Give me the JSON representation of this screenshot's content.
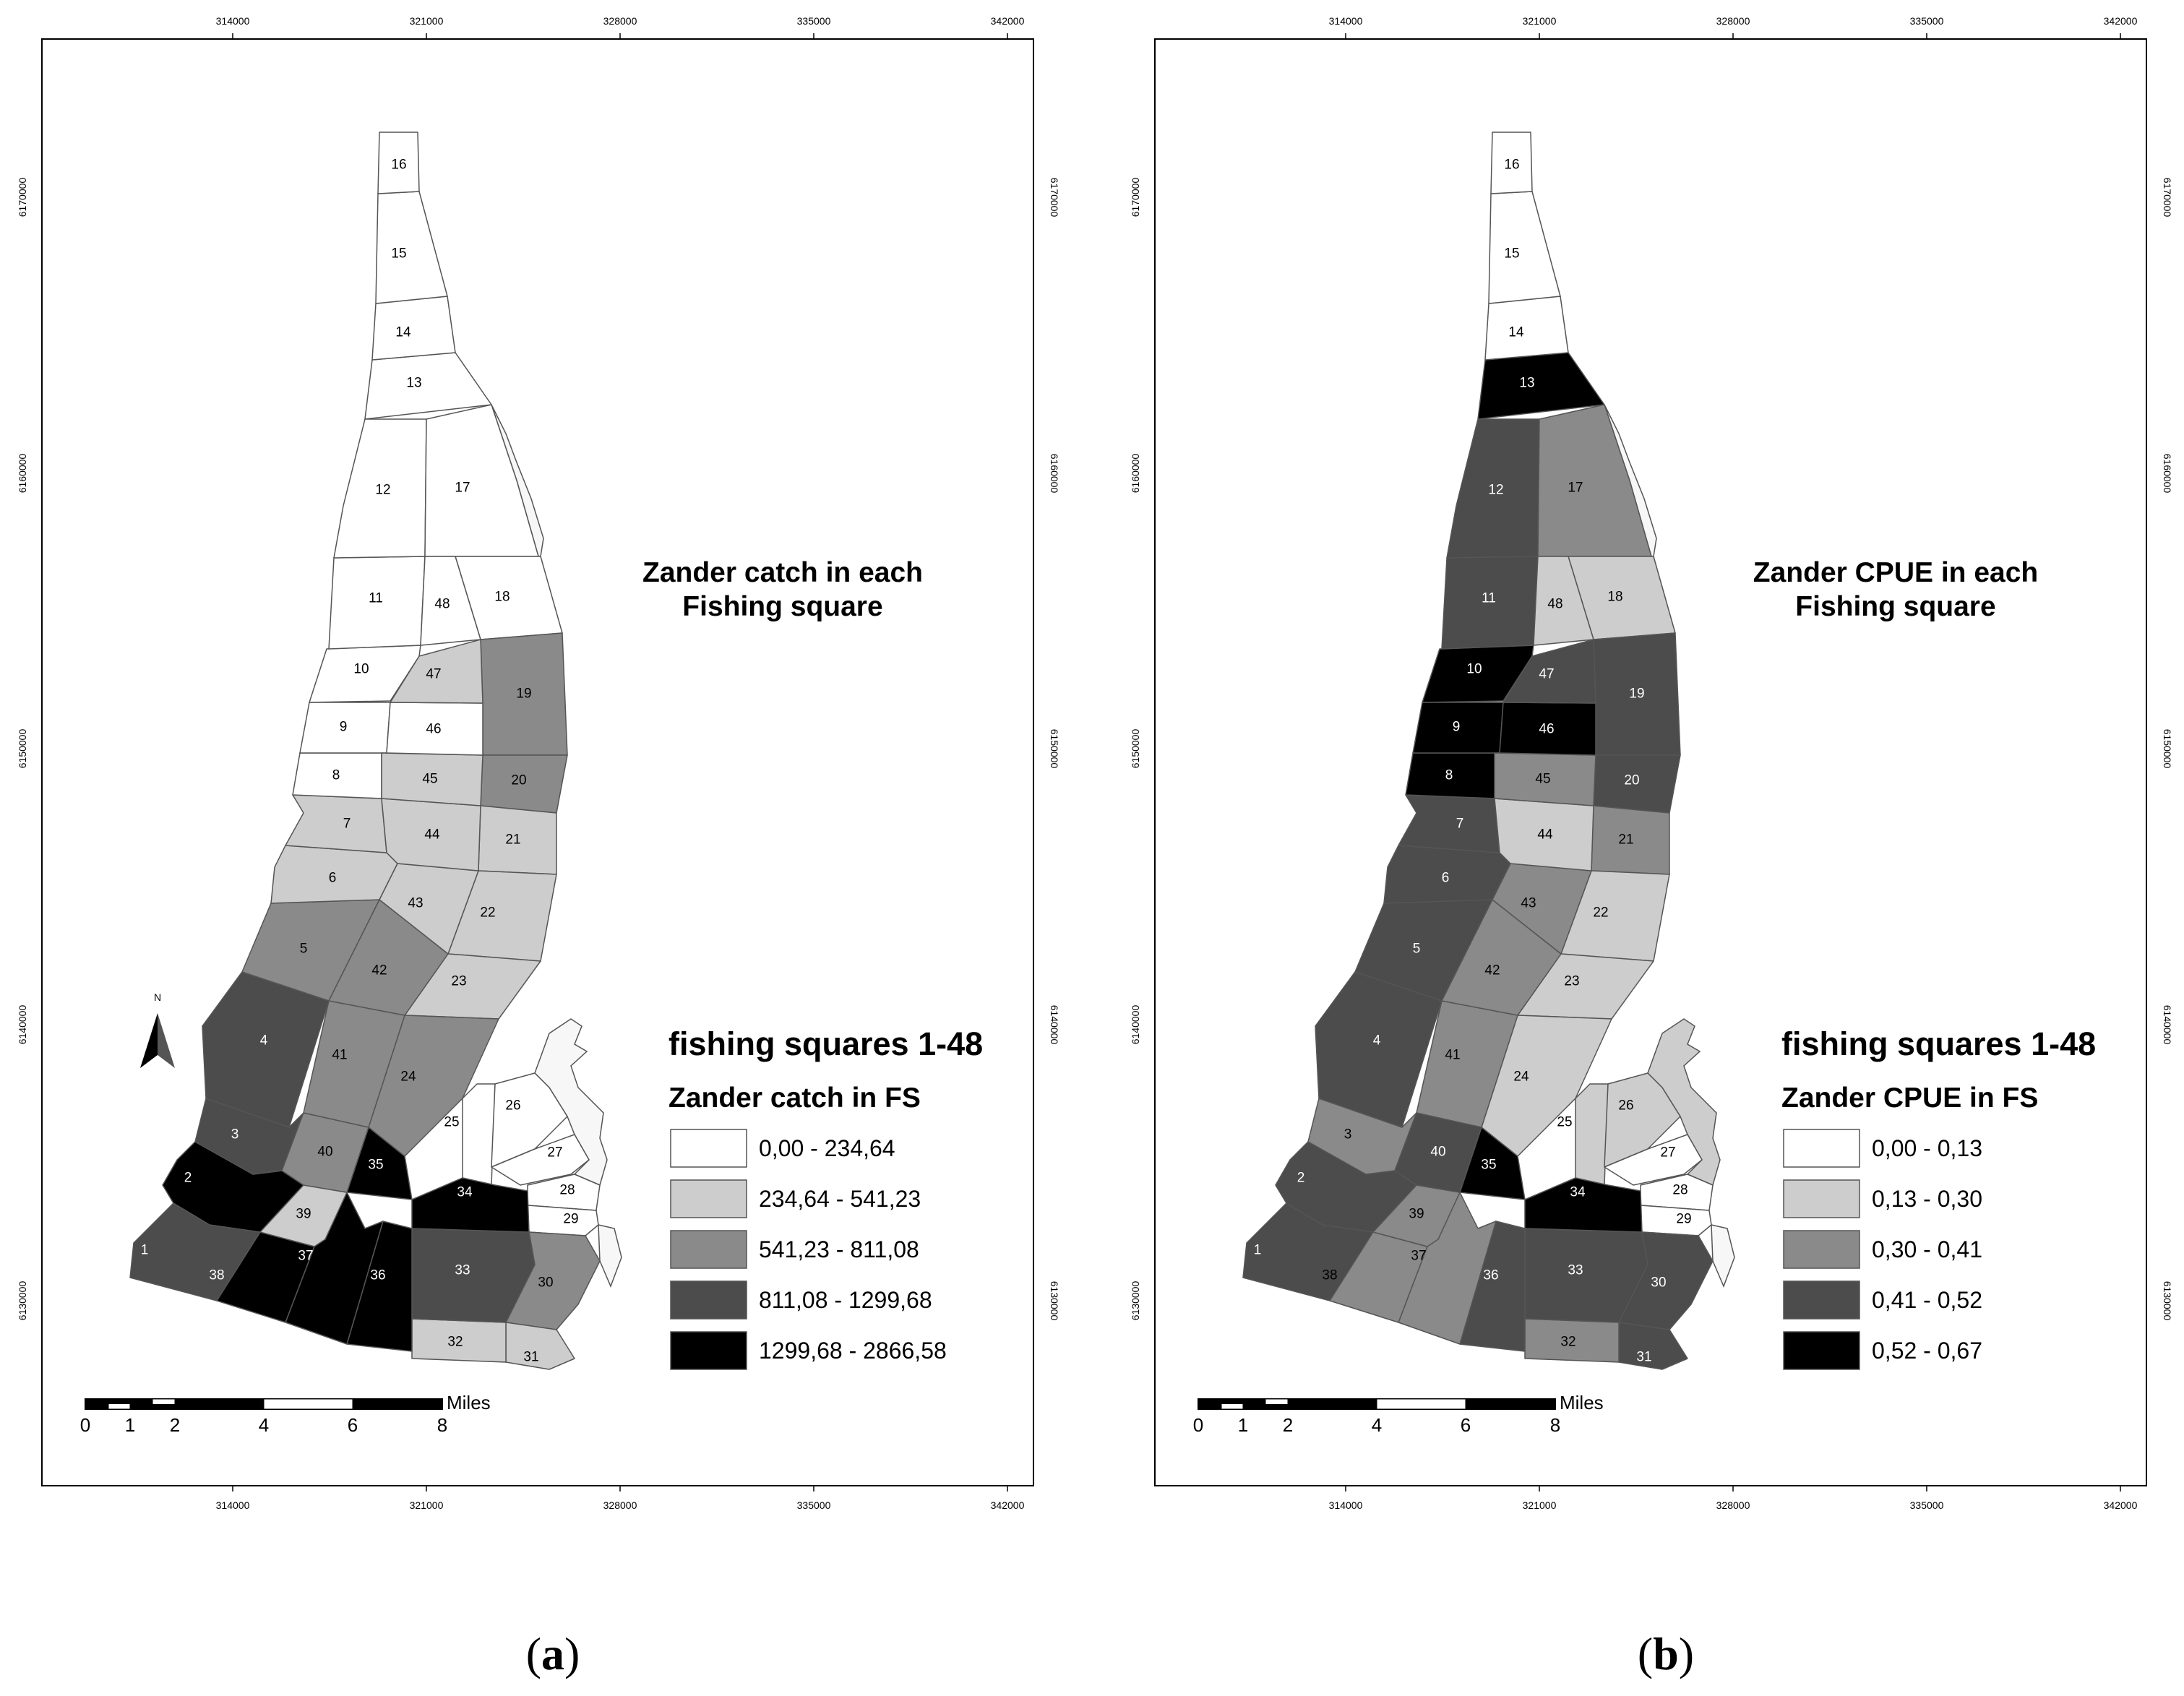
{
  "colors": {
    "class_1": "#ffffff",
    "class_2": "#cdcdcd",
    "class_3": "#8a8a8a",
    "class_4": "#4c4c4c",
    "class_5": "#000000",
    "outline": "#555555",
    "frame": "#000000"
  },
  "icons": {
    "north_arrow": "north-arrow-icon"
  },
  "panels": [
    {
      "id": "a",
      "caption_open": "(",
      "caption_letter": "a",
      "caption_close": ")",
      "map_title_line1": "Zander catch in each",
      "map_title_line2": "Fishing square",
      "legend_title": "fishing squares 1-48",
      "legend_subtitle": "Zander  catch in FS",
      "legend_classes": [
        {
          "label": "0,00 - 234,64",
          "class": 1
        },
        {
          "label": "234,64 - 541,23",
          "class": 2
        },
        {
          "label": "541,23 - 811,08",
          "class": 3
        },
        {
          "label": "811,08 - 1299,68",
          "class": 4
        },
        {
          "label": "1299,68 - 2866,58",
          "class": 5
        }
      ],
      "north_label": "N",
      "x_ticks": [
        "314000",
        "321000",
        "328000",
        "335000",
        "342000"
      ],
      "y_ticks": [
        "6170000",
        "6160000",
        "6150000",
        "6140000",
        "6130000"
      ],
      "scale_bar": {
        "labels": [
          "0",
          "1",
          "2",
          "4",
          "6",
          "8"
        ],
        "unit": "Miles"
      },
      "squares": {
        "1": 4,
        "2": 5,
        "3": 4,
        "4": 4,
        "5": 3,
        "6": 2,
        "7": 2,
        "8": 1,
        "9": 1,
        "10": 1,
        "11": 1,
        "12": 1,
        "13": 1,
        "14": 1,
        "15": 1,
        "16": 1,
        "17": 1,
        "18": 1,
        "19": 3,
        "20": 3,
        "21": 2,
        "22": 2,
        "23": 2,
        "24": 3,
        "25": 1,
        "26": 1,
        "27": 1,
        "28": 1,
        "29": 1,
        "30": 3,
        "31": 2,
        "32": 2,
        "33": 4,
        "34": 5,
        "35": 5,
        "36": 5,
        "37": 5,
        "38": 5,
        "39": 2,
        "40": 3,
        "41": 3,
        "42": 3,
        "43": 2,
        "44": 2,
        "45": 2,
        "46": 1,
        "47": 2,
        "48": 1
      }
    },
    {
      "id": "b",
      "caption_open": "(",
      "caption_letter": "b",
      "caption_close": ")",
      "map_title_line1": "Zander CPUE in each",
      "map_title_line2": "Fishing square",
      "legend_title": "fishing squares 1-48",
      "legend_subtitle": "Zander CPUE in FS",
      "legend_classes": [
        {
          "label": "0,00 - 0,13",
          "class": 1
        },
        {
          "label": "0,13 - 0,30",
          "class": 2
        },
        {
          "label": "0,30 - 0,41",
          "class": 3
        },
        {
          "label": "0,41 - 0,52",
          "class": 4
        },
        {
          "label": "0,52 - 0,67",
          "class": 5
        }
      ],
      "x_ticks": [
        "314000",
        "321000",
        "328000",
        "335000",
        "342000"
      ],
      "y_ticks": [
        "6170000",
        "6160000",
        "6150000",
        "6140000",
        "6130000"
      ],
      "scale_bar": {
        "labels": [
          "0",
          "1",
          "2",
          "4",
          "6",
          "8"
        ],
        "unit": "Miles"
      },
      "squares": {
        "1": 4,
        "2": 4,
        "3": 3,
        "4": 4,
        "5": 4,
        "6": 4,
        "7": 4,
        "8": 5,
        "9": 5,
        "10": 5,
        "11": 4,
        "12": 4,
        "13": 5,
        "14": 1,
        "15": 1,
        "16": 1,
        "17": 3,
        "18": 2,
        "19": 4,
        "20": 4,
        "21": 3,
        "22": 2,
        "23": 2,
        "24": 2,
        "25": 2,
        "26": 2,
        "27": 1,
        "28": 1,
        "29": 1,
        "30": 4,
        "31": 4,
        "32": 3,
        "33": 4,
        "34": 5,
        "35": 5,
        "36": 4,
        "37": 3,
        "38": 3,
        "39": 3,
        "40": 4,
        "41": 3,
        "42": 3,
        "43": 3,
        "44": 2,
        "45": 3,
        "46": 5,
        "47": 4,
        "48": 2
      }
    }
  ]
}
